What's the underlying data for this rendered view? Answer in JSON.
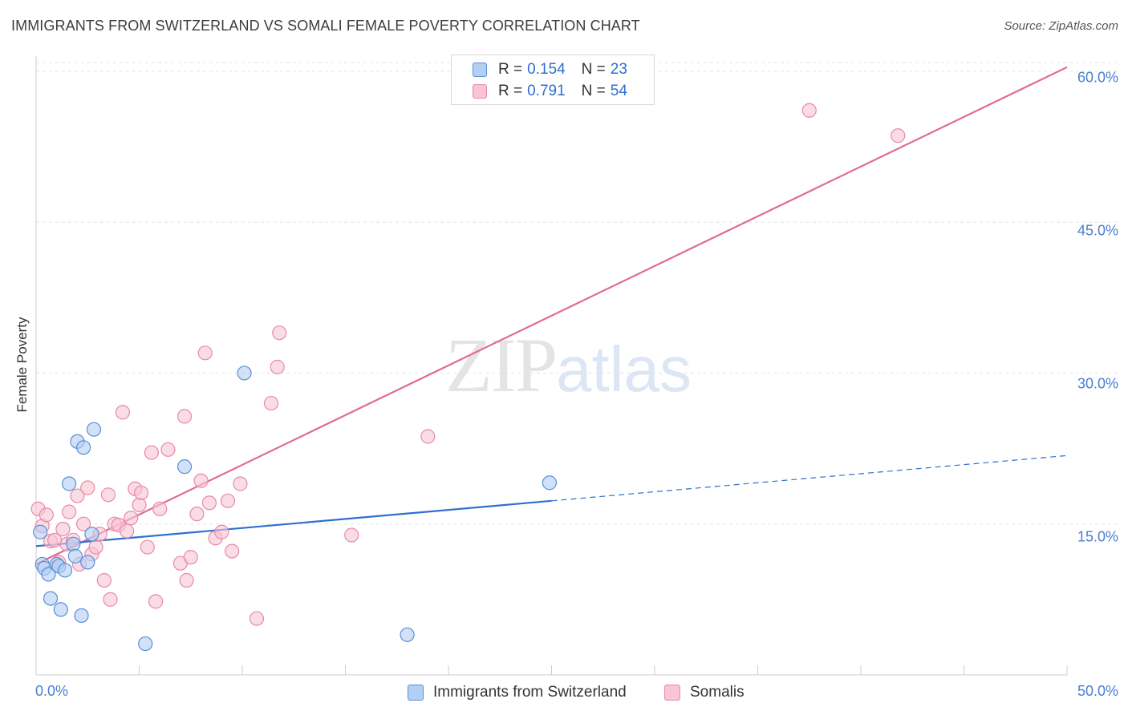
{
  "title": "IMMIGRANTS FROM SWITZERLAND VS SOMALI FEMALE POVERTY CORRELATION CHART",
  "source": "Source: ZipAtlas.com",
  "watermark": {
    "zip": "ZIP",
    "atlas": "atlas"
  },
  "legend": {
    "series1": {
      "r_label": "R = ",
      "r_value": "0.154",
      "n_label": "N = ",
      "n_value": "23",
      "name": "Immigrants from Switzerland"
    },
    "series2": {
      "r_label": "R = ",
      "r_value": "0.791",
      "n_label": "N = ",
      "n_value": "54",
      "name": "Somalis"
    }
  },
  "colors": {
    "blue_fill": "#b3cff3",
    "blue_stroke": "#5a8fd6",
    "blue_line": "#2f6fd0",
    "pink_fill": "#f7c5d3",
    "pink_stroke": "#e88aa6",
    "pink_line": "#e06b93",
    "grid": "#e3e3e3",
    "axis": "#cccccc"
  },
  "chart_data": {
    "type": "scatter",
    "title": "IMMIGRANTS FROM SWITZERLAND VS SOMALI FEMALE POVERTY CORRELATION CHART",
    "xlabel": "",
    "ylabel": "Female Poverty",
    "xlim": [
      0,
      50
    ],
    "ylim": [
      0,
      61.5
    ],
    "x_tick_labels": [
      "0.0%",
      "50.0%"
    ],
    "y_ticks": [
      15,
      30,
      45,
      60
    ],
    "y_tick_labels": [
      "15.0%",
      "30.0%",
      "45.0%",
      "60.0%"
    ],
    "grid": true,
    "series": [
      {
        "name": "Immigrants from Switzerland",
        "color": "blue",
        "points": [
          [
            0.2,
            14.2
          ],
          [
            0.3,
            11.0
          ],
          [
            0.4,
            10.6
          ],
          [
            0.6,
            10.0
          ],
          [
            0.7,
            7.6
          ],
          [
            1.0,
            11.0
          ],
          [
            1.1,
            10.8
          ],
          [
            1.2,
            6.5
          ],
          [
            1.4,
            10.4
          ],
          [
            1.6,
            19.0
          ],
          [
            1.8,
            13.0
          ],
          [
            1.9,
            11.8
          ],
          [
            2.0,
            23.2
          ],
          [
            2.2,
            5.9
          ],
          [
            2.3,
            22.6
          ],
          [
            2.5,
            11.2
          ],
          [
            2.7,
            14.0
          ],
          [
            2.8,
            24.4
          ],
          [
            5.3,
            3.1
          ],
          [
            7.2,
            20.7
          ],
          [
            10.1,
            30.0
          ],
          [
            18.0,
            4.0
          ],
          [
            24.9,
            19.1
          ]
        ],
        "trend": {
          "x0": 0,
          "y0": 12.8,
          "x1": 25.0,
          "y1": 17.3,
          "dashed_to_x": 50,
          "dashed_to_y": 21.8
        }
      },
      {
        "name": "Somalis",
        "color": "pink",
        "points": [
          [
            0.1,
            16.5
          ],
          [
            0.3,
            14.8
          ],
          [
            0.5,
            15.9
          ],
          [
            0.7,
            13.3
          ],
          [
            0.9,
            13.4
          ],
          [
            1.1,
            11.2
          ],
          [
            1.3,
            14.5
          ],
          [
            1.5,
            13.0
          ],
          [
            1.6,
            16.2
          ],
          [
            1.8,
            13.4
          ],
          [
            2.0,
            17.8
          ],
          [
            2.1,
            11.0
          ],
          [
            2.3,
            15.0
          ],
          [
            2.5,
            18.6
          ],
          [
            2.7,
            12.0
          ],
          [
            2.9,
            12.7
          ],
          [
            3.1,
            14.0
          ],
          [
            3.3,
            9.4
          ],
          [
            3.5,
            17.9
          ],
          [
            3.6,
            7.5
          ],
          [
            3.8,
            15.0
          ],
          [
            4.0,
            14.9
          ],
          [
            4.2,
            26.1
          ],
          [
            4.4,
            14.3
          ],
          [
            4.6,
            15.6
          ],
          [
            4.8,
            18.5
          ],
          [
            5.0,
            16.9
          ],
          [
            5.1,
            18.1
          ],
          [
            5.4,
            12.7
          ],
          [
            5.6,
            22.1
          ],
          [
            5.8,
            7.3
          ],
          [
            6.0,
            16.5
          ],
          [
            6.4,
            22.4
          ],
          [
            7.0,
            11.1
          ],
          [
            7.2,
            25.7
          ],
          [
            7.3,
            9.4
          ],
          [
            7.5,
            11.7
          ],
          [
            7.8,
            16.0
          ],
          [
            8.0,
            19.3
          ],
          [
            8.2,
            32.0
          ],
          [
            8.4,
            17.1
          ],
          [
            8.7,
            13.6
          ],
          [
            9.0,
            14.2
          ],
          [
            9.3,
            17.3
          ],
          [
            9.5,
            12.3
          ],
          [
            9.9,
            19.0
          ],
          [
            10.7,
            5.6
          ],
          [
            11.4,
            27.0
          ],
          [
            11.7,
            30.6
          ],
          [
            11.8,
            34.0
          ],
          [
            15.3,
            13.9
          ],
          [
            19.0,
            23.7
          ],
          [
            37.5,
            56.1
          ],
          [
            41.8,
            53.6
          ]
        ],
        "trend": {
          "x0": 0,
          "y0": 11.0,
          "x1": 50,
          "y1": 60.4
        }
      }
    ]
  }
}
